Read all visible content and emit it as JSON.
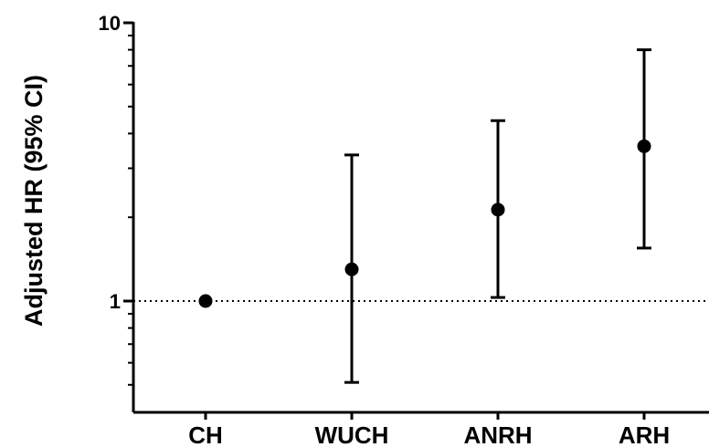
{
  "chart_data": {
    "type": "scatter",
    "ylabel": "Adjusted HR (95% CI)",
    "xlabel": "",
    "y_scale": "log",
    "ylim": [
      0.5,
      10
    ],
    "y_ticks": [
      {
        "value": 1,
        "label": "1"
      },
      {
        "value": 10,
        "label": "10"
      }
    ],
    "categories": [
      "CH",
      "WUCH",
      "ANRH",
      "ARH"
    ],
    "points": [
      {
        "category": "CH",
        "hr": 1.0,
        "ci_low": null,
        "ci_high": null
      },
      {
        "category": "WUCH",
        "hr": 1.3,
        "ci_low": 0.51,
        "ci_high": 3.35
      },
      {
        "category": "ANRH",
        "hr": 2.13,
        "ci_low": 1.03,
        "ci_high": 4.45
      },
      {
        "category": "ARH",
        "hr": 3.6,
        "ci_low": 1.55,
        "ci_high": 8.0
      }
    ],
    "reference_line": {
      "value": 1,
      "style": "dotted"
    },
    "grid": false,
    "legend": "none"
  }
}
